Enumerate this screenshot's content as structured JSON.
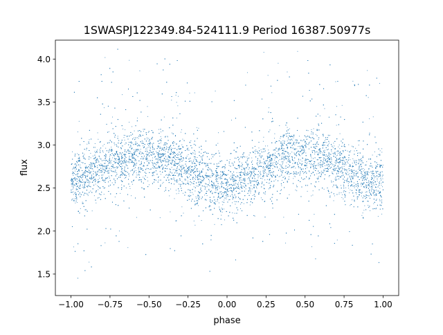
{
  "chart_data": {
    "type": "scatter",
    "title": "1SWASPJ122349.84-524111.9 Period 16387.50977s",
    "xlabel": "phase",
    "ylabel": "flux",
    "xlim": [
      -1.1,
      1.1
    ],
    "ylim": [
      1.25,
      4.22
    ],
    "xticks": [
      -1.0,
      -0.75,
      -0.5,
      -0.25,
      0.0,
      0.25,
      0.5,
      0.75,
      1.0
    ],
    "xtick_labels": [
      "−1.00",
      "−0.75",
      "−0.50",
      "−0.25",
      "0.00",
      "0.25",
      "0.50",
      "0.75",
      "1.00"
    ],
    "yticks": [
      1.5,
      2.0,
      2.5,
      3.0,
      3.5,
      4.0
    ],
    "ytick_labels": [
      "1.5",
      "2.0",
      "2.5",
      "3.0",
      "3.5",
      "4.0"
    ],
    "grid": false,
    "point_color": "#1f77b4",
    "x_range_of_points": [
      -1.0,
      1.0
    ],
    "binned_median": {
      "x": [
        -1.0,
        -0.9,
        -0.8,
        -0.7,
        -0.6,
        -0.5,
        -0.4,
        -0.3,
        -0.2,
        -0.1,
        0.0,
        0.1,
        0.2,
        0.3,
        0.4,
        0.5,
        0.6,
        0.7,
        0.8,
        0.9,
        1.0
      ],
      "y": [
        2.58,
        2.62,
        2.72,
        2.82,
        2.87,
        2.87,
        2.82,
        2.74,
        2.64,
        2.56,
        2.54,
        2.58,
        2.68,
        2.8,
        2.87,
        2.88,
        2.84,
        2.76,
        2.66,
        2.58,
        2.55
      ]
    },
    "flux_scatter_std": 0.17
  }
}
